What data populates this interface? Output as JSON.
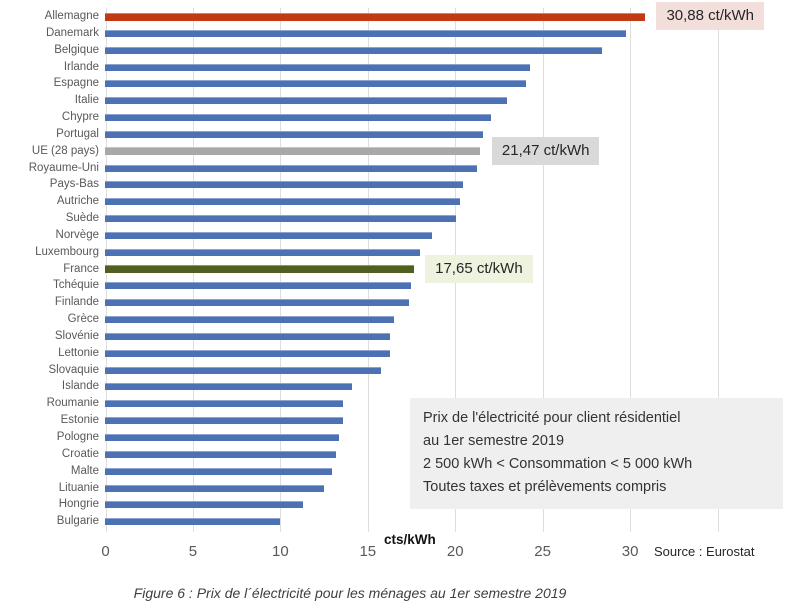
{
  "chart_data": {
    "type": "bar",
    "orientation": "horizontal",
    "xlabel": "cts/kWh",
    "xlim": [
      0,
      35
    ],
    "xticks": [
      0,
      5,
      10,
      15,
      20,
      25,
      30
    ],
    "gridline_values": [
      0,
      5,
      10,
      15,
      20,
      25,
      30,
      35
    ],
    "grid": true,
    "legend_position": "none",
    "categories": [
      "Allemagne",
      "Danemark",
      "Belgique",
      "Irlande",
      "Espagne",
      "Italie",
      "Chypre",
      "Portugal",
      "UE (28 pays)",
      "Royaume-Uni",
      "Pays-Bas",
      "Autriche",
      "Suède",
      "Norvège",
      "Luxembourg",
      "France",
      "Tchéquie",
      "Finlande",
      "Grèce",
      "Slovénie",
      "Lettonie",
      "Slovaquie",
      "Islande",
      "Roumanie",
      "Estonie",
      "Pologne",
      "Croatie",
      "Malte",
      "Lituanie",
      "Hongrie",
      "Bulgarie"
    ],
    "values": [
      30.88,
      29.8,
      28.4,
      24.3,
      24.1,
      23.0,
      22.1,
      21.6,
      21.47,
      21.3,
      20.5,
      20.3,
      20.1,
      18.7,
      18.0,
      17.65,
      17.5,
      17.4,
      16.5,
      16.3,
      16.3,
      15.8,
      14.1,
      13.6,
      13.6,
      13.4,
      13.2,
      13.0,
      12.5,
      11.3,
      10.0
    ],
    "colors": {
      "default": "#4D72B4",
      "highlights": {
        "Allemagne": "#C23A13",
        "UE (28 pays)": "#A8A8A8",
        "France": "#4F601F"
      }
    },
    "annotations": [
      {
        "category": "Allemagne",
        "label": "30,88 ct/kWh",
        "bg": "#F2DEDB"
      },
      {
        "category": "UE (28 pays)",
        "label": "21,47 ct/kWh",
        "bg": "#D9D9D9"
      },
      {
        "category": "France",
        "label": "17,65 ct/kWh",
        "bg": "#EEF3DF"
      }
    ],
    "note_box": {
      "bg": "#EFEFEF",
      "lines": [
        "Prix de l'électricité pour client résidentiel",
        "au 1er semestre  2019",
        "2 500 kWh < Consommation < 5 000 kWh",
        "Toutes taxes et prélèvements compris"
      ]
    },
    "source": "Source : Eurostat"
  },
  "caption": "Figure 6 : Prix de l´électricité pour les ménages au 1er semestre 2019"
}
